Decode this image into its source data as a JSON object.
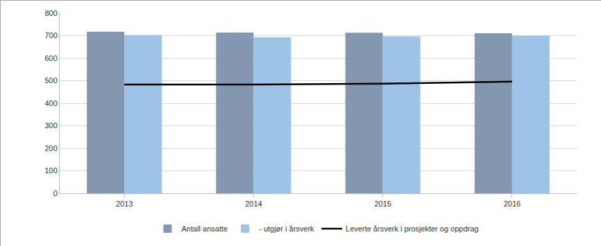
{
  "chart_data": {
    "type": "bar",
    "categories": [
      "2013",
      "2014",
      "2015",
      "2016"
    ],
    "series": [
      {
        "name": "Antall ansatte",
        "color": "#8497b0",
        "values": [
          718,
          714,
          713,
          711
        ]
      },
      {
        "name": "- utgjør i årsverk",
        "color": "#9dc3e6",
        "values": [
          703,
          693,
          697,
          700
        ]
      },
      {
        "name": "Leverte årsverk i prosjekter og oppdrag",
        "color": "#000000",
        "type": "line",
        "values": [
          483,
          483,
          487,
          496
        ]
      }
    ],
    "ylim": [
      0,
      800
    ],
    "yticks": [
      0,
      100,
      200,
      300,
      400,
      500,
      600,
      700,
      800
    ],
    "grid": true,
    "legend": "bottom"
  }
}
